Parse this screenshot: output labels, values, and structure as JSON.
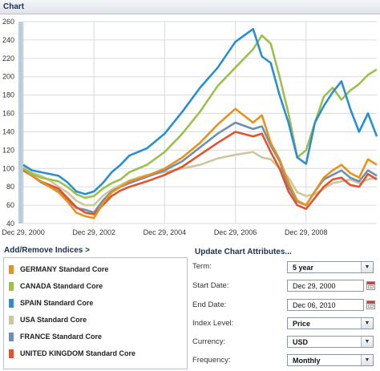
{
  "header": {
    "title": "Chart"
  },
  "chart_data": {
    "type": "line",
    "x_tick_labels": [
      "Dec 29, 2000",
      "Dec 29, 2002",
      "Dec 29, 2004",
      "Dec 29, 2006",
      "Dec 29, 2008"
    ],
    "x_start": 2001.0,
    "x_end": 2011.0,
    "ylim": [
      40,
      260
    ],
    "y_ticks": [
      40,
      60,
      80,
      100,
      120,
      140,
      160,
      180,
      200,
      220,
      240,
      260
    ],
    "grid": true,
    "series": [
      {
        "name": "USA Standard Core",
        "color": "#cdc79b",
        "x": [
          2001.0,
          2001.25,
          2001.5,
          2001.75,
          2002.0,
          2002.25,
          2002.5,
          2002.75,
          2003.0,
          2003.25,
          2003.5,
          2003.75,
          2004.0,
          2004.5,
          2005.0,
          2005.5,
          2006.0,
          2006.5,
          2007.0,
          2007.5,
          2007.75,
          2008.0,
          2008.25,
          2008.5,
          2008.75,
          2009.0,
          2009.25,
          2009.5,
          2009.75,
          2010.0,
          2010.25,
          2010.5,
          2010.75,
          2011.0
        ],
        "y": [
          103,
          95,
          92,
          87,
          80,
          74,
          65,
          60,
          60,
          70,
          77,
          82,
          87,
          93,
          96,
          100,
          104,
          111,
          115,
          118,
          112,
          110,
          100,
          90,
          74,
          70,
          72,
          78,
          84,
          86,
          88,
          84,
          88,
          90
        ]
      },
      {
        "name": "FRANCE Standard Core",
        "color": "#6f8fb0",
        "x": [
          2001.0,
          2001.25,
          2001.5,
          2001.75,
          2002.0,
          2002.25,
          2002.5,
          2002.75,
          2003.0,
          2003.25,
          2003.5,
          2003.75,
          2004.0,
          2004.5,
          2005.0,
          2005.5,
          2006.0,
          2006.5,
          2007.0,
          2007.5,
          2007.75,
          2008.0,
          2008.25,
          2008.5,
          2008.75,
          2009.0,
          2009.25,
          2009.5,
          2009.75,
          2010.0,
          2010.25,
          2010.5,
          2010.75,
          2011.0
        ],
        "y": [
          100,
          92,
          85,
          80,
          75,
          66,
          57,
          55,
          52,
          65,
          75,
          80,
          84,
          91,
          98,
          108,
          123,
          138,
          150,
          143,
          146,
          125,
          108,
          80,
          64,
          60,
          75,
          88,
          93,
          98,
          90,
          86,
          98,
          92
        ]
      },
      {
        "name": "UNITED KINGDOM Standard Core",
        "color": "#e2532f",
        "x": [
          2001.0,
          2001.25,
          2001.5,
          2001.75,
          2002.0,
          2002.25,
          2002.5,
          2002.75,
          2003.0,
          2003.25,
          2003.5,
          2003.75,
          2004.0,
          2004.5,
          2005.0,
          2005.5,
          2006.0,
          2006.5,
          2007.0,
          2007.5,
          2007.75,
          2008.0,
          2008.25,
          2008.5,
          2008.75,
          2009.0,
          2009.25,
          2009.5,
          2009.75,
          2010.0,
          2010.25,
          2010.5,
          2010.75,
          2011.0
        ],
        "y": [
          98,
          92,
          86,
          82,
          78,
          68,
          58,
          52,
          50,
          60,
          70,
          76,
          80,
          86,
          93,
          102,
          115,
          128,
          140,
          135,
          138,
          118,
          100,
          75,
          60,
          56,
          68,
          80,
          88,
          90,
          82,
          80,
          94,
          88
        ]
      },
      {
        "name": "GERMANY Standard Core",
        "color": "#e8921c",
        "x": [
          2001.0,
          2001.25,
          2001.5,
          2001.75,
          2002.0,
          2002.25,
          2002.5,
          2002.75,
          2003.0,
          2003.25,
          2003.5,
          2003.75,
          2004.0,
          2004.5,
          2005.0,
          2005.5,
          2006.0,
          2006.5,
          2007.0,
          2007.5,
          2007.75,
          2008.0,
          2008.25,
          2008.5,
          2008.75,
          2009.0,
          2009.25,
          2009.5,
          2009.75,
          2010.0,
          2010.25,
          2010.5,
          2010.75,
          2011.0
        ],
        "y": [
          100,
          92,
          86,
          80,
          74,
          64,
          52,
          48,
          46,
          62,
          74,
          80,
          86,
          92,
          100,
          112,
          128,
          148,
          165,
          150,
          158,
          128,
          110,
          85,
          65,
          60,
          75,
          90,
          98,
          104,
          95,
          90,
          110,
          104
        ]
      },
      {
        "name": "CANADA Standard Core",
        "color": "#9dbf4e",
        "x": [
          2001.0,
          2001.25,
          2001.5,
          2001.75,
          2002.0,
          2002.25,
          2002.5,
          2002.75,
          2003.0,
          2003.25,
          2003.5,
          2003.75,
          2004.0,
          2004.5,
          2005.0,
          2005.5,
          2006.0,
          2006.5,
          2007.0,
          2007.5,
          2007.75,
          2008.0,
          2008.25,
          2008.5,
          2008.75,
          2009.0,
          2009.25,
          2009.5,
          2009.75,
          2010.0,
          2010.25,
          2010.5,
          2010.75,
          2011.0
        ],
        "y": [
          100,
          94,
          90,
          88,
          86,
          80,
          72,
          68,
          70,
          78,
          84,
          88,
          96,
          104,
          118,
          138,
          162,
          190,
          210,
          230,
          245,
          236,
          200,
          160,
          112,
          120,
          150,
          178,
          188,
          175,
          185,
          192,
          202,
          208
        ]
      },
      {
        "name": "SPAIN Standard Core",
        "color": "#2b8fcf",
        "x": [
          2001.0,
          2001.25,
          2001.5,
          2001.75,
          2002.0,
          2002.25,
          2002.5,
          2002.75,
          2003.0,
          2003.25,
          2003.5,
          2003.75,
          2004.0,
          2004.5,
          2005.0,
          2005.5,
          2006.0,
          2006.5,
          2007.0,
          2007.5,
          2007.75,
          2008.0,
          2008.25,
          2008.5,
          2008.75,
          2009.0,
          2009.25,
          2009.5,
          2009.75,
          2010.0,
          2010.25,
          2010.5,
          2010.75,
          2011.0
        ],
        "y": [
          104,
          98,
          96,
          94,
          92,
          85,
          75,
          72,
          75,
          84,
          96,
          104,
          114,
          122,
          138,
          162,
          188,
          210,
          238,
          252,
          222,
          215,
          180,
          150,
          112,
          105,
          150,
          168,
          183,
          195,
          165,
          140,
          160,
          135
        ]
      }
    ]
  },
  "legend": {
    "title": "Add/Remove Indices >",
    "items": [
      {
        "label": "GERMANY Standard Core",
        "color": "#e8921c"
      },
      {
        "label": "CANADA Standard Core",
        "color": "#9dbf4e"
      },
      {
        "label": "SPAIN Standard Core",
        "color": "#2b8fcf"
      },
      {
        "label": "USA Standard Core",
        "color": "#cdc79b"
      },
      {
        "label": "FRANCE Standard Core",
        "color": "#6f8fb0"
      },
      {
        "label": "UNITED KINGDOM Standard Core",
        "color": "#e2532f"
      }
    ]
  },
  "attributes": {
    "title": "Update Chart Attributes...",
    "term_label": "Term:",
    "term_value": "5 year",
    "start_label": "Start Date:",
    "start_value": "Dec 29, 2000",
    "end_label": "End Date:",
    "end_value": "Dec 06, 2010",
    "index_label": "Index Level:",
    "index_value": "Price",
    "currency_label": "Currency:",
    "currency_value": "USD",
    "frequency_label": "Frequency:",
    "frequency_value": "Monthly"
  }
}
